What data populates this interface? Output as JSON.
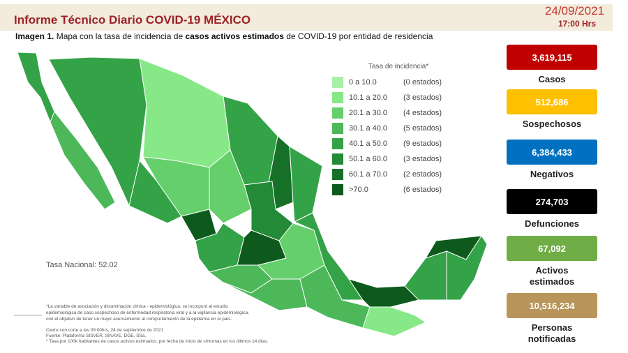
{
  "header": {
    "title": "Informe Técnico Diario COVID-19 MÉXICO",
    "date": "24/09/2021",
    "time": "17:00 Hrs"
  },
  "caption": {
    "label": "Imagen 1.",
    "text_1": "Mapa con la tasa de incidencia de",
    "bold": "casos activos estimados",
    "text_2": "de COVID-19 por entidad de residencia"
  },
  "legend": {
    "title": "Tasa de incidencia*",
    "items": [
      {
        "range": "0 a 10.0",
        "count": "(0 estados)",
        "color": "#a8f0a8"
      },
      {
        "range": "10.1 a 20.0",
        "count": "(3 estados)",
        "color": "#86e886"
      },
      {
        "range": "20.1 a 30.0",
        "count": "(4 estados)",
        "color": "#64cf6b"
      },
      {
        "range": "30.1 a 40.0",
        "count": "(5 estados)",
        "color": "#4cb85a"
      },
      {
        "range": "40.1 a 50.0",
        "count": "(9 estados)",
        "color": "#34a247"
      },
      {
        "range": "50.1 a 60.0",
        "count": "(3 estados)",
        "color": "#238a37"
      },
      {
        "range": "60.1 a 70.0",
        "count": "(2 estados)",
        "color": "#177028"
      },
      {
        "range": ">70.0",
        "count": "(6 estados)",
        "color": "#0d5a1c"
      }
    ]
  },
  "national_rate": "Tasa Nacional: 52.02",
  "stats": [
    {
      "value": "3,619,115",
      "label": [
        "Casos"
      ],
      "color": "#c00000"
    },
    {
      "value": "512,686",
      "label": [
        "Sospechosos"
      ],
      "color": "#ffc000"
    },
    {
      "value": "6,384,433",
      "label": [
        "Negativos"
      ],
      "color": "#0070c0"
    },
    {
      "value": "274,703",
      "label": [
        "Defunciones"
      ],
      "color": "#000000"
    },
    {
      "value": "67,092",
      "label": [
        "Activos",
        "estimados"
      ],
      "color": "#70ad47"
    },
    {
      "value": "10,516,234",
      "label": [
        "Personas",
        "notificadas"
      ],
      "color": "#b8955a"
    }
  ],
  "footnotes": [
    "*La variable de asociación y dictaminación clínica - epidemiológica, se incorporó al estudio",
    "epidemiológico de caso sospechoso de enfermedad respiratoria viral y a la vigilancia epidemiológica,",
    "con el objetivo de tener un mejor acercamiento al comportamiento de la epidemia en el país.",
    "Cierre con corte a las 09:00hrs, 24 de septiembre de 2021",
    "Fuente: Plataforma SISVER, SINAVE, DGE, SSa.",
    "* Tasa por 100k habitantes de casos activos estimados, por fecha de inicio de síntomas en los últimos 14 días."
  ]
}
